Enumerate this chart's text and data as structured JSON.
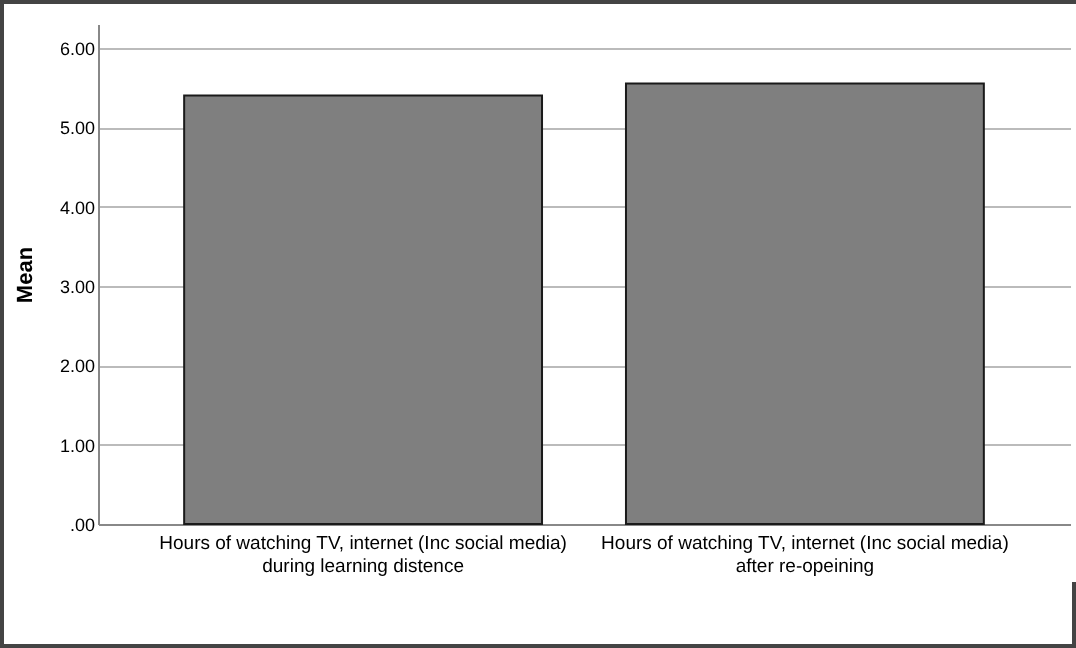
{
  "chart_data": {
    "type": "bar",
    "ylabel": "Mean",
    "categories": [
      "Hours of watching TV, internet (Inc social media)\nduring learning distence",
      "Hours of watching TV, internet (Inc social media)\nafter re-opeining"
    ],
    "values": [
      5.4,
      5.55
    ],
    "color": "#7f7f7f",
    "ylim": [
      0,
      6.3
    ],
    "yticks": [
      {
        "value": 0,
        "label": ".00"
      },
      {
        "value": 1,
        "label": "1.00"
      },
      {
        "value": 2,
        "label": "2.00"
      },
      {
        "value": 3,
        "label": "3.00"
      },
      {
        "value": 4,
        "label": "4.00"
      },
      {
        "value": 5,
        "label": "5.00"
      },
      {
        "value": 6,
        "label": "6.00"
      }
    ],
    "grid": "y"
  }
}
